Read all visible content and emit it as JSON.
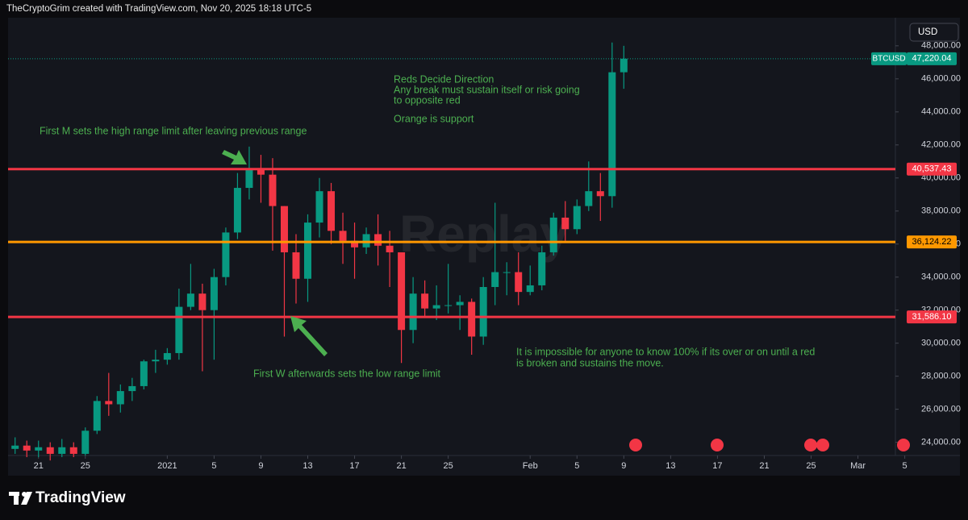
{
  "header": {
    "text": "TheCryptoGrim created with TradingView.com, Nov 20, 2025 18:18 UTC-5"
  },
  "chart_data": {
    "type": "candlestick",
    "currency": "USD",
    "symbol": "BTCUSD",
    "watermark": "Replay",
    "last_price": {
      "value": 47220.04,
      "label": "47,220.04"
    },
    "up_color": "#089981",
    "down_color": "#f23645",
    "x": [
      -2,
      -1,
      0,
      1,
      2,
      3,
      4,
      5,
      6,
      7,
      8,
      9,
      10,
      11,
      12,
      13,
      14,
      15,
      16,
      17,
      18,
      19,
      20,
      21,
      22,
      23,
      24,
      25,
      26,
      27,
      28,
      29,
      30,
      31,
      32,
      33,
      34,
      35,
      36,
      37,
      38,
      39,
      40,
      41,
      42,
      43,
      44,
      45,
      46,
      47,
      48,
      49,
      50
    ],
    "open": [
      23600,
      23800,
      23500,
      23700,
      23300,
      23700,
      23300,
      24700,
      26500,
      26300,
      27100,
      27400,
      28900,
      29000,
      29400,
      32200,
      33000,
      32000,
      34000,
      36700,
      39400,
      40600,
      40200,
      38300,
      35500,
      33900,
      37300,
      39200,
      36800,
      36200,
      35800,
      36600,
      35900,
      35500,
      30800,
      33000,
      32100,
      32300,
      32300,
      32500,
      30400,
      33400,
      34300,
      34300,
      33100,
      33500,
      35500,
      37600,
      36900,
      38300,
      39200,
      38900,
      46400
    ],
    "high": [
      24300,
      24100,
      24100,
      24000,
      24200,
      24000,
      24900,
      26800,
      28200,
      27500,
      27900,
      29000,
      29600,
      29700,
      33300,
      34800,
      33600,
      34500,
      37000,
      40300,
      41900,
      41400,
      41200,
      38300,
      36600,
      37800,
      40000,
      39700,
      37900,
      37300,
      37000,
      37800,
      36800,
      35500,
      34000,
      33800,
      33500,
      34800,
      32900,
      32700,
      34000,
      38500,
      34900,
      35500,
      34700,
      35900,
      37900,
      38600,
      38700,
      41000,
      40300,
      48200,
      48000
    ],
    "low": [
      23300,
      23100,
      23100,
      22900,
      23100,
      23100,
      23200,
      24500,
      25600,
      25800,
      26500,
      27200,
      28200,
      28700,
      29000,
      32000,
      28300,
      29000,
      33500,
      36300,
      38700,
      38500,
      35600,
      30400,
      32400,
      32500,
      36400,
      36000,
      34800,
      33900,
      35400,
      34700,
      33400,
      28800,
      30000,
      31600,
      31400,
      31800,
      30800,
      29300,
      29900,
      32300,
      32900,
      32300,
      32900,
      33200,
      35300,
      36200,
      36600,
      38000,
      37400,
      38200,
      45400
    ],
    "close": [
      23800,
      23500,
      23700,
      23300,
      23700,
      23300,
      24700,
      26500,
      26300,
      27100,
      27400,
      28900,
      29000,
      29400,
      32200,
      33000,
      32000,
      34000,
      36700,
      39400,
      40600,
      40200,
      38300,
      35500,
      33900,
      37300,
      39200,
      36800,
      36200,
      35800,
      36600,
      35900,
      35500,
      30800,
      33000,
      32100,
      32300,
      32300,
      32500,
      30400,
      33400,
      34300,
      34300,
      33100,
      33500,
      35500,
      37600,
      36900,
      38300,
      39200,
      38900,
      46400,
      47220
    ],
    "xlim": [
      -2.6,
      73.2
    ],
    "xticks": [
      {
        "value": 0,
        "label": "21"
      },
      {
        "value": 4,
        "label": "25"
      },
      {
        "value": 11,
        "label": "2021"
      },
      {
        "value": 15,
        "label": "5"
      },
      {
        "value": 19,
        "label": "9"
      },
      {
        "value": 23,
        "label": "13"
      },
      {
        "value": 27,
        "label": "17"
      },
      {
        "value": 31,
        "label": "21"
      },
      {
        "value": 35,
        "label": "25"
      },
      {
        "value": 42,
        "label": "Feb"
      },
      {
        "value": 46,
        "label": "5"
      },
      {
        "value": 50,
        "label": "9"
      },
      {
        "value": 54,
        "label": "13"
      },
      {
        "value": 58,
        "label": "17"
      },
      {
        "value": 62,
        "label": "21"
      },
      {
        "value": 66,
        "label": "25"
      },
      {
        "value": 70,
        "label": "Mar"
      },
      {
        "value": 74,
        "label": "5"
      }
    ],
    "ylim": [
      23200,
      49700
    ],
    "yticks": [
      {
        "value": 24000,
        "label": "24,000.00"
      },
      {
        "value": 26000,
        "label": "26,000.00"
      },
      {
        "value": 28000,
        "label": "28,000.00"
      },
      {
        "value": 30000,
        "label": "30,000.00"
      },
      {
        "value": 32000,
        "label": "32,000.00"
      },
      {
        "value": 34000,
        "label": "34,000.00"
      },
      {
        "value": 36000,
        "label": "36,000.00"
      },
      {
        "value": 38000,
        "label": "38,000.00"
      },
      {
        "value": 40000,
        "label": "40,000.00"
      },
      {
        "value": 42000,
        "label": "42,000.00"
      },
      {
        "value": 44000,
        "label": "44,000.00"
      },
      {
        "value": 46000,
        "label": "46,000.00"
      },
      {
        "value": 48000,
        "label": "48,000.00"
      }
    ],
    "levels": [
      {
        "value": 40537.43,
        "label": "40,537.43",
        "color": "#f23645"
      },
      {
        "value": 36124.22,
        "label": "36,124.22",
        "color": "#ff9800"
      },
      {
        "value": 31586.1,
        "label": "31,586.10",
        "color": "#f23645"
      }
    ],
    "annotations": [
      "First M sets the high range limit after leaving previous range",
      [
        "Reds Decide Direction",
        "Any break must sustain itself or risk going",
        "to opposite red",
        "Orange is support"
      ],
      "First W afterwards sets the low range limit",
      [
        "It is impossible for anyone to know 100% if its over or on until a red",
        "is broken and sustains the move."
      ]
    ]
  },
  "footer": {
    "brand": "TradingView"
  }
}
